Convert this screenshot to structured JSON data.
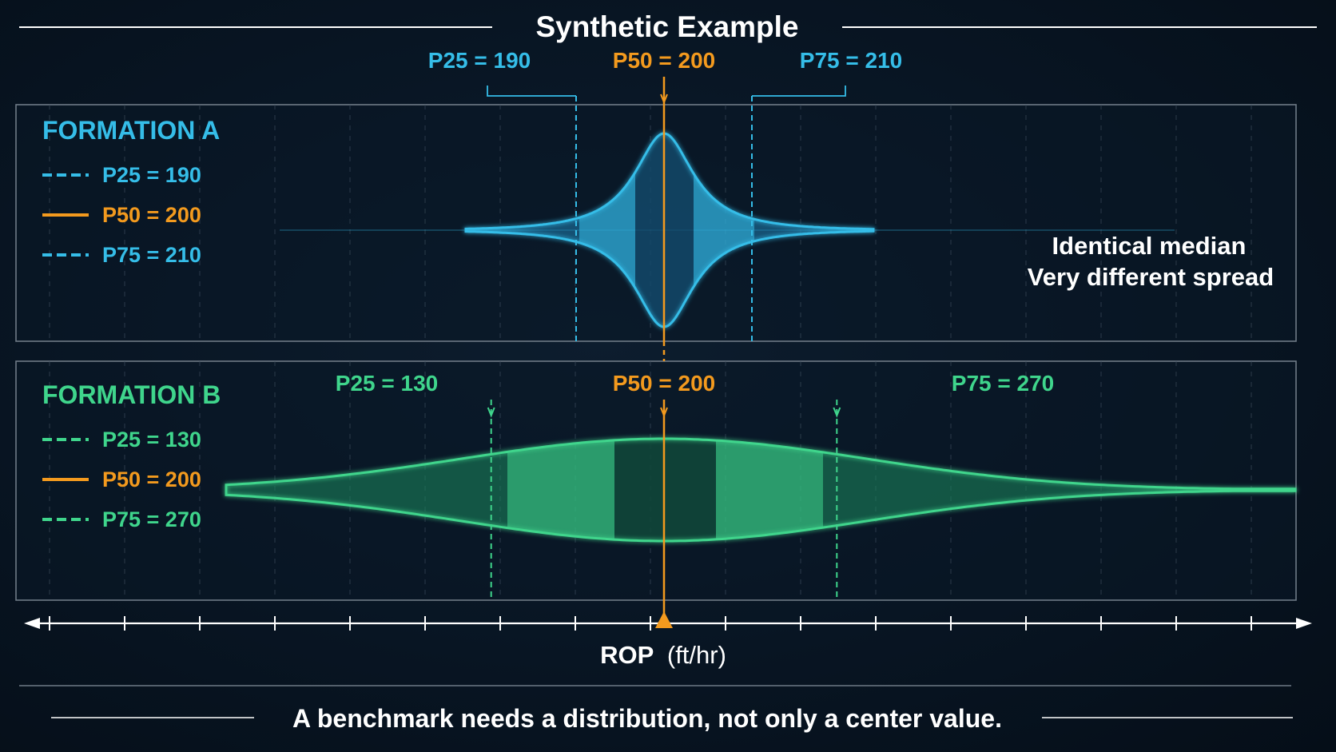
{
  "title": "Synthetic Example",
  "footer": "A benchmark needs a distribution, not only a center value.",
  "annotation": [
    "Identical median",
    "Very different spread"
  ],
  "colors": {
    "background": "#081320",
    "formation_a": "#35bde8",
    "formation_b": "#3fd58c",
    "median": "#f39a1e",
    "text": "#ffffff",
    "panel_border": "#6e7a86"
  },
  "chart_data": {
    "type": "area",
    "xlabel": "ROP",
    "xlabel_unit": "(ft/hr)",
    "series": [
      {
        "name": "FORMATION A",
        "percentiles": [
          {
            "label": "P25 = 190",
            "p": 25,
            "value": 190
          },
          {
            "label": "P50 = 200",
            "p": 50,
            "value": 200
          },
          {
            "label": "P75 = 210",
            "p": 75,
            "value": 210
          }
        ]
      },
      {
        "name": "FORMATION B",
        "percentiles": [
          {
            "label": "P25 = 130",
            "p": 25,
            "value": 130
          },
          {
            "label": "P50 = 200",
            "p": 50,
            "value": 200
          },
          {
            "label": "P75 = 270",
            "p": 75,
            "value": 270
          }
        ]
      }
    ],
    "grid": true,
    "legend": "left"
  }
}
